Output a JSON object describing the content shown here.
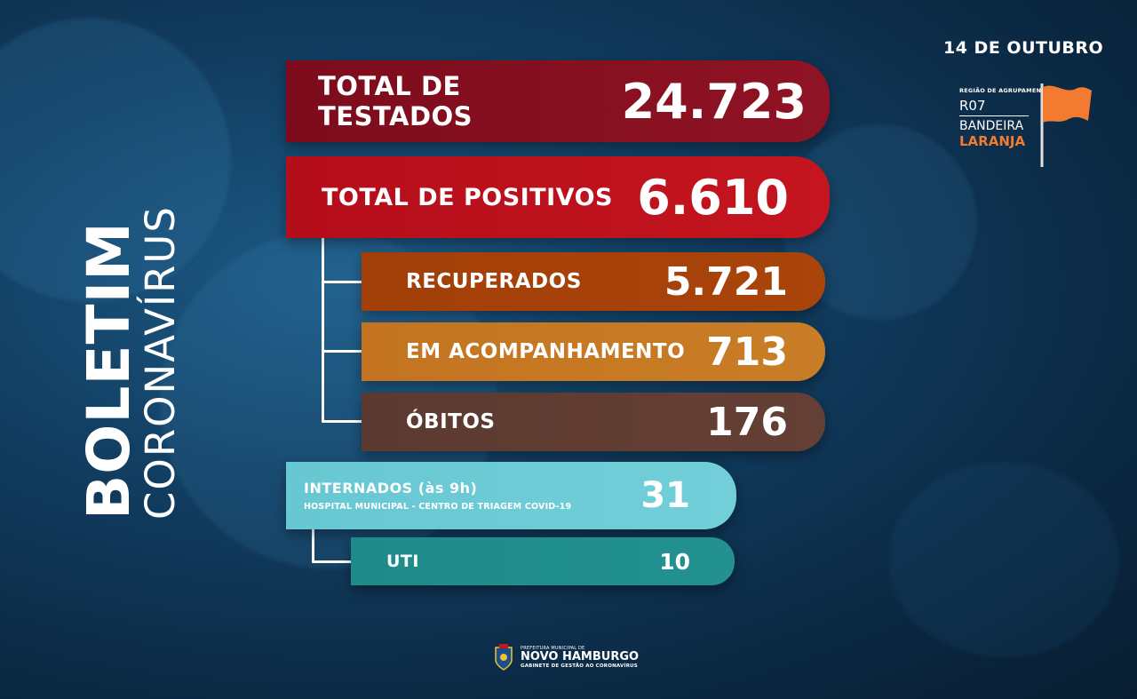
{
  "title": {
    "line1": "BOLETIM",
    "line2": "CORONAVÍRUS"
  },
  "date": "14 DE OUTUBRO",
  "flag": {
    "region_label": "REGIÃO DE AGRUPAMENTO",
    "region_code": "R07",
    "bandeira": "BANDEIRA",
    "color_name": "LARANJA",
    "color": "#f27a31"
  },
  "stats": {
    "testados": {
      "label": "TOTAL DE TESTADOS",
      "value": "24.723"
    },
    "positivos": {
      "label": "TOTAL DE POSITIVOS",
      "value": "6.610"
    },
    "recuperados": {
      "label": "RECUPERADOS",
      "value": "5.721"
    },
    "acompanhamento": {
      "label": "EM ACOMPANHAMENTO",
      "value": "713"
    },
    "obitos": {
      "label": "ÓBITOS",
      "value": "176"
    },
    "internados": {
      "label": "INTERNADOS (às 9h)",
      "sublabel": "HOSPITAL MUNICIPAL - CENTRO DE TRIAGEM COVID-19",
      "value": "31"
    },
    "uti": {
      "label": "UTI",
      "value": "10"
    }
  },
  "footer": {
    "prefeitura": "PREFEITURA MUNICIPAL DE",
    "city": "NOVO HAMBURGO",
    "gabinete": "GABINETE DE GESTÃO AO CORONAVÍRUS"
  },
  "colors": {
    "testados": "#7c0c1c",
    "positivos": "#b40e1a",
    "recuperados": "#a23e07",
    "acompanhamento": "#c47420",
    "obitos": "#5c3a31",
    "internados": "#67c7d2",
    "uti": "#1f8a8a"
  }
}
